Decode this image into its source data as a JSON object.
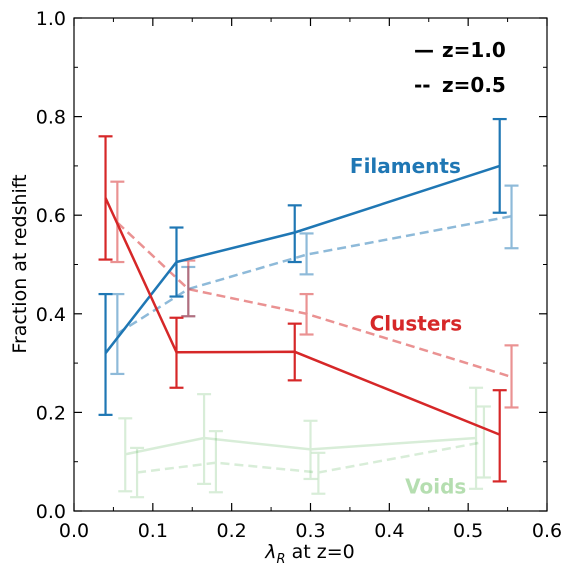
{
  "chart_data": {
    "type": "line",
    "xlabel_main": "λ",
    "xlabel_sub": "R",
    "xlabel_rest": " at z=0",
    "ylabel": "Fraction at redshift",
    "xlim": [
      0.0,
      0.6
    ],
    "ylim": [
      0.0,
      1.0
    ],
    "xticks": [
      0.0,
      0.1,
      0.2,
      0.3,
      0.4,
      0.5,
      0.6
    ],
    "xtick_labels": [
      "0.0",
      "0.1",
      "0.2",
      "0.3",
      "0.4",
      "0.5",
      "0.6"
    ],
    "yticks": [
      0.0,
      0.2,
      0.4,
      0.6,
      0.8,
      1.0
    ],
    "ytick_labels": [
      "0.0",
      "0.2",
      "0.4",
      "0.6",
      "0.8",
      "1.0"
    ],
    "grid": false,
    "legend_position": "top-right",
    "legend": [
      {
        "style": "solid",
        "label": "z=1.0",
        "marker": "—"
      },
      {
        "style": "dashed",
        "label": "z=0.5",
        "marker": "--"
      }
    ],
    "annotations": [
      {
        "text": "Filaments",
        "color": "#1f77b4",
        "x": 0.35,
        "y": 0.7
      },
      {
        "text": "Clusters",
        "color": "#d62728",
        "x": 0.375,
        "y": 0.38
      },
      {
        "text": "Voids",
        "color": "#b5deb0",
        "x": 0.42,
        "y": 0.05
      }
    ],
    "series": [
      {
        "group": "Filaments",
        "redshift": "z=1.0",
        "style": "solid",
        "color": "#1f77b4",
        "opacity": 1.0,
        "x": [
          0.04,
          0.13,
          0.28,
          0.54
        ],
        "y": [
          0.32,
          0.505,
          0.565,
          0.7
        ],
        "err_low": [
          0.195,
          0.435,
          0.505,
          0.605
        ],
        "err_high": [
          0.44,
          0.575,
          0.62,
          0.795
        ]
      },
      {
        "group": "Filaments",
        "redshift": "z=0.5",
        "style": "dashed",
        "color": "#1f77b4",
        "opacity": 0.5,
        "x": [
          0.055,
          0.145,
          0.295,
          0.555
        ],
        "y": [
          0.36,
          0.45,
          0.52,
          0.598
        ],
        "err_low": [
          0.278,
          0.395,
          0.48,
          0.533
        ],
        "err_high": [
          0.44,
          0.495,
          0.563,
          0.66
        ]
      },
      {
        "group": "Clusters",
        "redshift": "z=1.0",
        "style": "solid",
        "color": "#d62728",
        "opacity": 1.0,
        "x": [
          0.04,
          0.13,
          0.28,
          0.54
        ],
        "y": [
          0.635,
          0.322,
          0.323,
          0.155
        ],
        "err_low": [
          0.51,
          0.25,
          0.265,
          0.06
        ],
        "err_high": [
          0.76,
          0.392,
          0.38,
          0.245
        ]
      },
      {
        "group": "Clusters",
        "redshift": "z=0.5",
        "style": "dashed",
        "color": "#d62728",
        "opacity": 0.5,
        "x": [
          0.055,
          0.145,
          0.295,
          0.555
        ],
        "y": [
          0.585,
          0.45,
          0.4,
          0.272
        ],
        "err_low": [
          0.505,
          0.395,
          0.358,
          0.21
        ],
        "err_high": [
          0.668,
          0.508,
          0.44,
          0.336
        ]
      },
      {
        "group": "Voids",
        "redshift": "z=1.0",
        "style": "solid",
        "color": "#2ca02c",
        "opacity": 0.18,
        "x": [
          0.065,
          0.165,
          0.3,
          0.51
        ],
        "y": [
          0.115,
          0.148,
          0.125,
          0.148
        ],
        "err_low": [
          0.04,
          0.055,
          0.065,
          0.045
        ],
        "err_high": [
          0.188,
          0.237,
          0.183,
          0.25
        ]
      },
      {
        "group": "Voids",
        "redshift": "z=0.5",
        "style": "dashed",
        "color": "#2ca02c",
        "opacity": 0.18,
        "x": [
          0.08,
          0.18,
          0.31,
          0.52
        ],
        "y": [
          0.078,
          0.098,
          0.078,
          0.14
        ],
        "err_low": [
          0.028,
          0.038,
          0.035,
          0.068
        ],
        "err_high": [
          0.128,
          0.162,
          0.118,
          0.212
        ]
      }
    ]
  }
}
